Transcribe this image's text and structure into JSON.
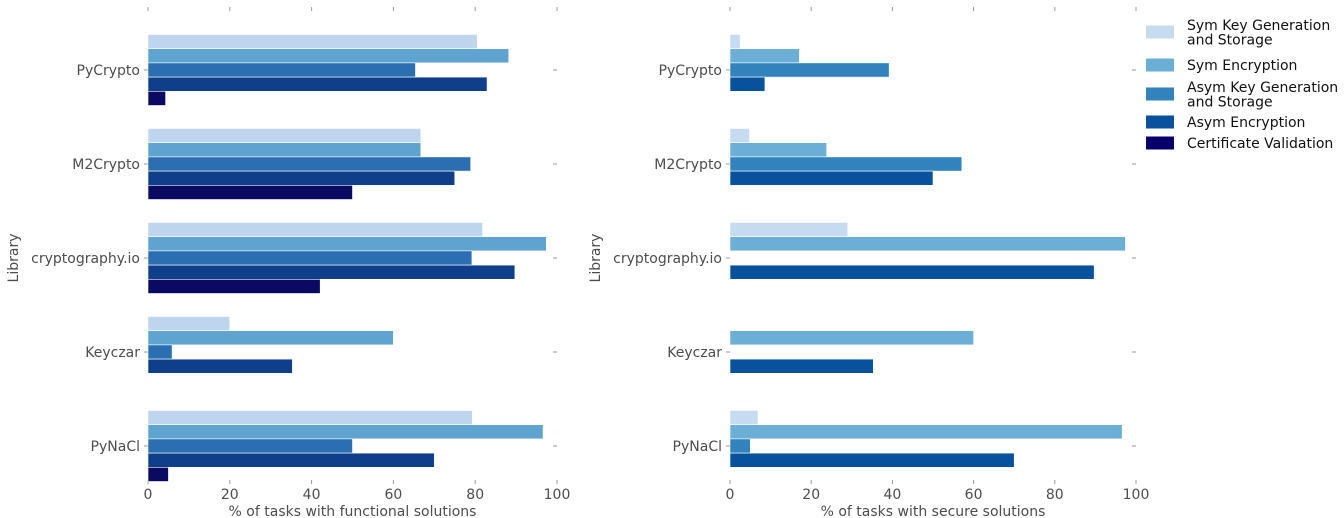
{
  "legend": [
    {
      "lines": [
        "Sym Key Generation",
        "and Storage"
      ],
      "color": "#c6dbef"
    },
    {
      "lines": [
        "Sym Encryption"
      ],
      "color": "#6baed6"
    },
    {
      "lines": [
        "Asym Key Generation",
        "and Storage"
      ],
      "color": "#3182bd"
    },
    {
      "lines": [
        "Asym Encryption"
      ],
      "color": "#08519c"
    },
    {
      "lines": [
        "Certificate Validation"
      ],
      "color": "#08006a"
    }
  ],
  "chart_data": [
    {
      "type": "bar",
      "orientation": "horizontal",
      "ylabel": "Library",
      "xlabel": "% of tasks with functional solutions",
      "xlim": [
        0,
        100
      ],
      "xticks": [
        0,
        20,
        40,
        60,
        80,
        100
      ],
      "categories": [
        "PyCrypto",
        "M2Crypto",
        "cryptography.io",
        "Keyczar",
        "PyNaCl"
      ],
      "colors": [
        "#bfd4ed",
        "#5fa3d0",
        "#2b6fb2",
        "#0f3f8a",
        "#0a0a63"
      ],
      "series": [
        {
          "name": "Sym Key Generation and Storage",
          "values": [
            80.5,
            66.7,
            81.8,
            20,
            79.3
          ]
        },
        {
          "name": "Sym Encryption",
          "values": [
            88.2,
            66.7,
            97.4,
            60,
            96.6
          ]
        },
        {
          "name": "Asym Key Generation and Storage",
          "values": [
            65.4,
            78.9,
            79.2,
            5.9,
            50
          ]
        },
        {
          "name": "Asym Encryption",
          "values": [
            82.9,
            75,
            89.7,
            35.3,
            70
          ]
        },
        {
          "name": "Certificate Validation",
          "values": [
            4.3,
            50,
            42.1,
            0,
            5
          ]
        }
      ]
    },
    {
      "type": "bar",
      "orientation": "horizontal",
      "ylabel": "Library",
      "xlabel": "% of tasks with secure solutions",
      "xlim": [
        0,
        100
      ],
      "xticks": [
        0,
        20,
        40,
        60,
        80,
        100
      ],
      "categories": [
        "PyCrypto",
        "M2Crypto",
        "cryptography.io",
        "Keyczar",
        "PyNaCl"
      ],
      "colors": [
        "#c6dbef",
        "#6baed6",
        "#3182bd",
        "#08519c",
        "#08006a"
      ],
      "series": [
        {
          "name": "Sym Key Generation and Storage",
          "values": [
            2.5,
            4.8,
            29,
            0,
            6.9
          ]
        },
        {
          "name": "Sym Encryption",
          "values": [
            17.1,
            23.8,
            97.4,
            60,
            96.6
          ]
        },
        {
          "name": "Asym Key Generation and Storage",
          "values": [
            39.2,
            57.1,
            0,
            0,
            5
          ]
        },
        {
          "name": "Asym Encryption",
          "values": [
            8.6,
            50,
            89.7,
            35.3,
            70
          ]
        },
        {
          "name": "Certificate Validation",
          "values": [
            0,
            0,
            0,
            0,
            0
          ]
        }
      ]
    }
  ]
}
